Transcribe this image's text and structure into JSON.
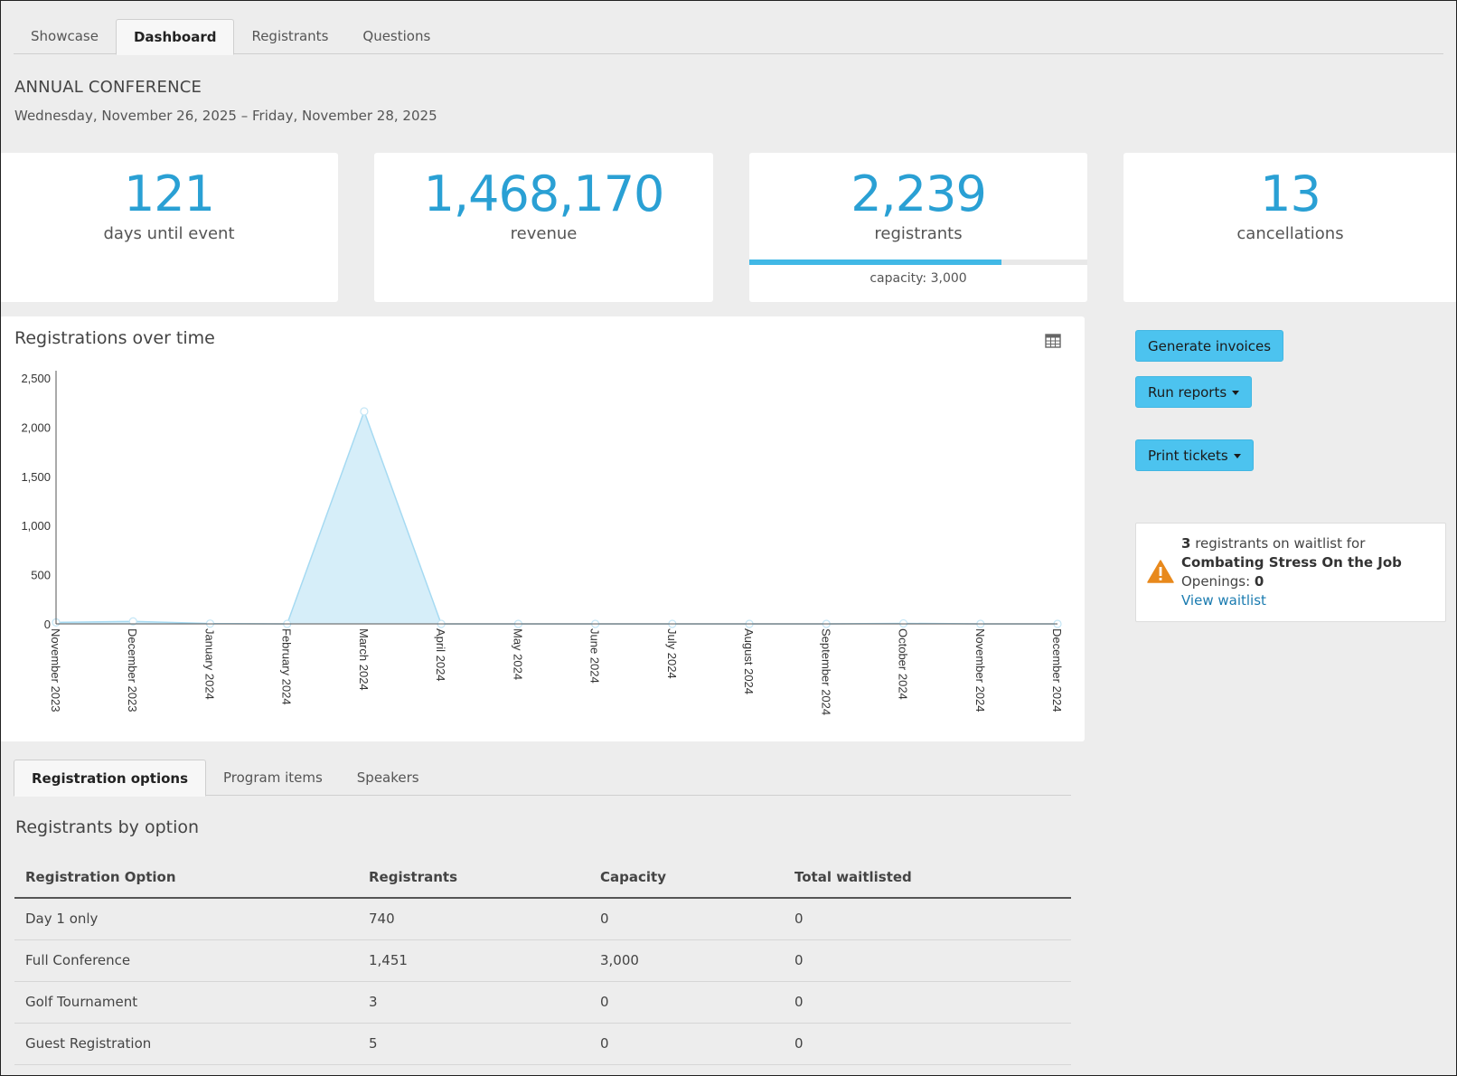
{
  "tabs": [
    "Showcase",
    "Dashboard",
    "Registrants",
    "Questions"
  ],
  "event": {
    "title": "ANNUAL CONFERENCE",
    "dates": "Wednesday, November 26, 2025 – Friday, November 28, 2025"
  },
  "stats": {
    "days": {
      "value": "121",
      "label": "days until event"
    },
    "revenue": {
      "value": "1,468,170",
      "label": "revenue"
    },
    "registrants": {
      "value": "2,239",
      "label": "registrants",
      "capacity_text": "capacity: 3,000",
      "fill_fraction": 0.746
    },
    "cancellations": {
      "value": "13",
      "label": "cancellations"
    }
  },
  "chart": {
    "title": "Registrations over time",
    "icon": "table-icon"
  },
  "chart_data": {
    "type": "area",
    "title": "Registrations over time",
    "xlabel": "",
    "ylabel": "",
    "x": [
      "November 2023",
      "December 2023",
      "January 2024",
      "February 2024",
      "March 2024",
      "April 2024",
      "May 2024",
      "June 2024",
      "July 2024",
      "August 2024",
      "September 2024",
      "October 2024",
      "November 2024",
      "December 2024"
    ],
    "series": [
      {
        "values": [
          15,
          25,
          3,
          0,
          2160,
          0,
          0,
          0,
          0,
          0,
          0,
          5,
          0,
          0
        ]
      }
    ],
    "ylim": [
      0,
      2500
    ],
    "yticks": [
      "0",
      "500",
      "1,000",
      "1,500",
      "2,000",
      "2,500"
    ],
    "ytick_values": [
      0,
      500,
      1000,
      1500,
      2000,
      2500
    ],
    "colors": {
      "fill": "#d6eef9",
      "line": "#a6daf2",
      "axis": "#555555"
    },
    "grid": false
  },
  "actions": {
    "generate": "Generate invoices",
    "reports": "Run reports",
    "tickets": "Print tickets"
  },
  "waitlist": {
    "count": "3",
    "text_mid": "registrants on waitlist for",
    "program": "Combating Stress On the Job",
    "openings_label": "Openings:",
    "openings": "0",
    "link": "View waitlist"
  },
  "bottom_tabs": [
    "Registration options",
    "Program items",
    "Speakers"
  ],
  "section": {
    "title": "Registrants by option",
    "columns": [
      "Registration Option",
      "Registrants",
      "Capacity",
      "Total waitlisted"
    ],
    "rows": [
      [
        "Day 1 only",
        "740",
        "0",
        "0"
      ],
      [
        "Full Conference",
        "1,451",
        "3,000",
        "0"
      ],
      [
        "Golf Tournament",
        "3",
        "0",
        "0"
      ],
      [
        "Guest Registration",
        "5",
        "0",
        "0"
      ]
    ]
  }
}
